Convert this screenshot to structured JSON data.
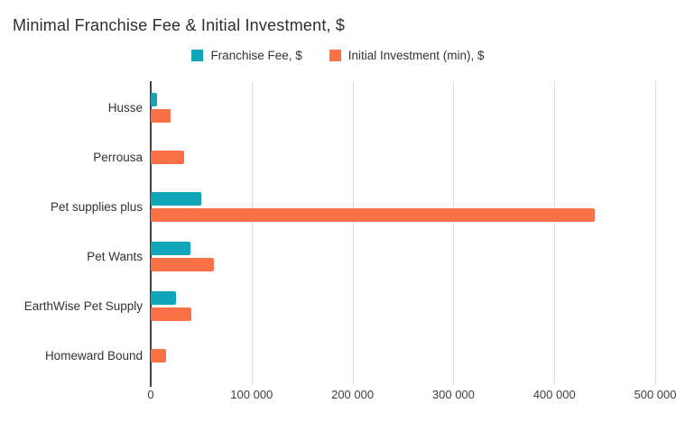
{
  "title": "Minimal Franchise Fee & Initial Investment, $",
  "colors": {
    "franchise_fee": "#10a6b9",
    "initial_investment": "#fa7047",
    "gridline": "#dcdcdc",
    "axis": "#424242",
    "text": "#333333"
  },
  "chart_data": {
    "type": "bar",
    "orientation": "horizontal",
    "title": "Minimal Franchise Fee & Initial Investment, $",
    "xlabel": "",
    "ylabel": "",
    "categories": [
      "Husse",
      "Perrousa",
      "Pet supplies plus",
      "Pet Wants",
      "EarthWise Pet Supply",
      "Homeward Bound"
    ],
    "series": [
      {
        "name": "Franchise Fee, $",
        "color": "#10a6b9",
        "values": [
          6000,
          0,
          50000,
          39000,
          25000,
          0
        ]
      },
      {
        "name": "Initial Investment (min), $",
        "color": "#fa7047",
        "values": [
          20000,
          33000,
          440000,
          63000,
          40000,
          15000
        ]
      }
    ],
    "xlim": [
      0,
      500000
    ],
    "x_ticks": [
      0,
      100000,
      200000,
      300000,
      400000,
      500000
    ],
    "x_tick_labels": [
      "0",
      "100 000",
      "200 000",
      "300 000",
      "400 000",
      "500 000"
    ],
    "grid": true,
    "legend_position": "top-center"
  }
}
